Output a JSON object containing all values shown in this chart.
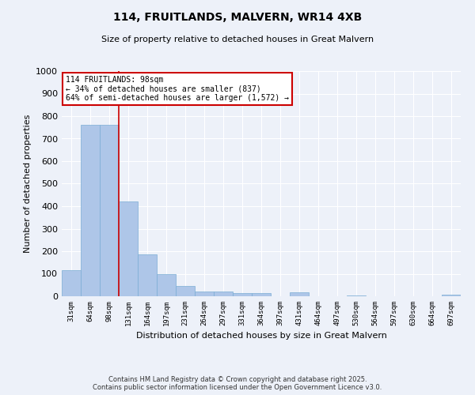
{
  "title1": "114, FRUITLANDS, MALVERN, WR14 4XB",
  "title2": "Size of property relative to detached houses in Great Malvern",
  "xlabel": "Distribution of detached houses by size in Great Malvern",
  "ylabel": "Number of detached properties",
  "categories": [
    "31sqm",
    "64sqm",
    "98sqm",
    "131sqm",
    "164sqm",
    "197sqm",
    "231sqm",
    "264sqm",
    "297sqm",
    "331sqm",
    "364sqm",
    "397sqm",
    "431sqm",
    "464sqm",
    "497sqm",
    "530sqm",
    "564sqm",
    "597sqm",
    "630sqm",
    "664sqm",
    "697sqm"
  ],
  "values": [
    115,
    760,
    760,
    420,
    185,
    97,
    46,
    20,
    22,
    15,
    15,
    0,
    16,
    0,
    0,
    5,
    0,
    0,
    0,
    0,
    8
  ],
  "bar_color": "#aec6e8",
  "bar_edge_color": "#7aadd4",
  "property_line_index": 2,
  "annotation_title": "114 FRUITLANDS: 98sqm",
  "annotation_line1": "← 34% of detached houses are smaller (837)",
  "annotation_line2": "64% of semi-detached houses are larger (1,572) →",
  "annotation_box_color": "#ffffff",
  "annotation_box_edge": "#cc0000",
  "vline_color": "#cc0000",
  "ylim": [
    0,
    1000
  ],
  "yticks": [
    0,
    100,
    200,
    300,
    400,
    500,
    600,
    700,
    800,
    900,
    1000
  ],
  "footnote1": "Contains HM Land Registry data © Crown copyright and database right 2025.",
  "footnote2": "Contains public sector information licensed under the Open Government Licence v3.0.",
  "bg_color": "#edf1f9",
  "grid_color": "#ffffff"
}
